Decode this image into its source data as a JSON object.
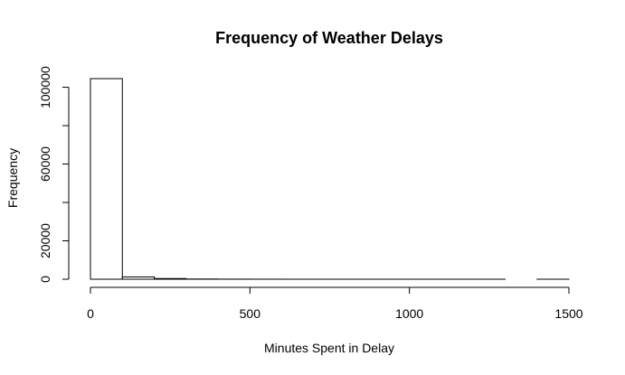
{
  "chart_data": {
    "type": "bar",
    "title": "Frequency of Weather Delays",
    "xlabel": "Minutes Spent in Delay",
    "ylabel": "Frequency",
    "bins": [
      {
        "from": 0,
        "to": 100,
        "count": 104500
      },
      {
        "from": 100,
        "to": 200,
        "count": 1200
      },
      {
        "from": 200,
        "to": 300,
        "count": 350
      },
      {
        "from": 300,
        "to": 400,
        "count": 100
      },
      {
        "from": 400,
        "to": 500,
        "count": 40
      },
      {
        "from": 500,
        "to": 600,
        "count": 20
      },
      {
        "from": 600,
        "to": 700,
        "count": 10
      },
      {
        "from": 700,
        "to": 800,
        "count": 5
      },
      {
        "from": 800,
        "to": 900,
        "count": 3
      },
      {
        "from": 900,
        "to": 1000,
        "count": 2
      },
      {
        "from": 1000,
        "to": 1100,
        "count": 1
      },
      {
        "from": 1100,
        "to": 1200,
        "count": 1
      },
      {
        "from": 1200,
        "to": 1300,
        "count": 1
      },
      {
        "from": 1300,
        "to": 1400,
        "count": 0
      },
      {
        "from": 1400,
        "to": 1500,
        "count": 1
      }
    ],
    "xlim": [
      0,
      1500
    ],
    "ylim": [
      0,
      105000
    ],
    "xticks": [
      0,
      500,
      1000,
      1500
    ],
    "yticks": [
      0,
      20000,
      60000,
      100000
    ],
    "grid": false
  }
}
